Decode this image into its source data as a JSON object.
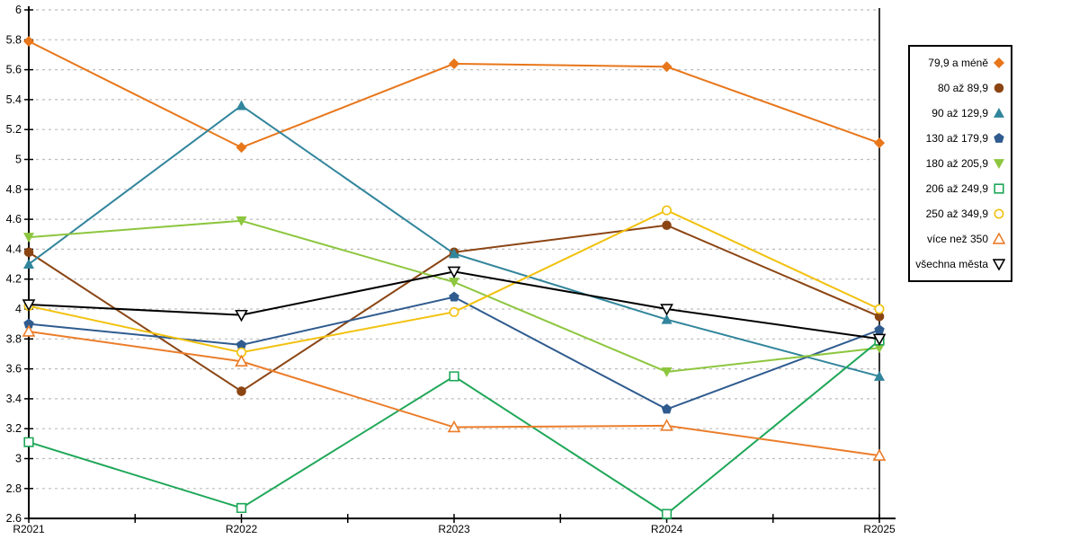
{
  "chart_data": {
    "type": "line",
    "title": "",
    "xlabel": "",
    "ylabel": "",
    "x_categories": [
      "R2021",
      "R2022",
      "R2023",
      "R2024",
      "R2025"
    ],
    "ylim": [
      2.6,
      6.0
    ],
    "y_tick_step": 0.2,
    "y_tick_labels": [
      "6",
      "5.8",
      "5.6",
      "5.4",
      "5.2",
      "5",
      "4.8",
      "4.6",
      "4.4",
      "4.2",
      "4",
      "3.8",
      "3.6",
      "3.4",
      "3.2",
      "3",
      "2.8",
      "2.6"
    ],
    "grid": "horizontal-dashed",
    "gridline_color": "#bdbdbd",
    "axis_color": "#000000",
    "background_color": "#ffffff",
    "legend_position": "right",
    "series": [
      {
        "name": "79,9 a méně",
        "color": "#e8761a",
        "marker": "diamond",
        "fill": "solid",
        "values": [
          5.79,
          5.08,
          5.64,
          5.62,
          5.11
        ]
      },
      {
        "name": "80 až 89,9",
        "color": "#8b4513",
        "marker": "circle",
        "fill": "solid",
        "values": [
          4.38,
          3.45,
          4.38,
          4.56,
          3.95
        ]
      },
      {
        "name": "90 až 129,9",
        "color": "#31859c",
        "marker": "triangle-up",
        "fill": "solid",
        "values": [
          4.3,
          5.36,
          4.37,
          3.93,
          3.55
        ]
      },
      {
        "name": "130 až 179,9",
        "color": "#2f5b8f",
        "marker": "pentagon",
        "fill": "solid",
        "values": [
          3.9,
          3.76,
          4.08,
          3.33,
          3.86
        ]
      },
      {
        "name": "180 až 205,9",
        "color": "#8dc63f",
        "marker": "triangle-down",
        "fill": "solid",
        "values": [
          4.48,
          4.59,
          4.18,
          3.58,
          3.74
        ]
      },
      {
        "name": "206 až 249,9",
        "color": "#1fa758",
        "marker": "square",
        "fill": "hollow",
        "values": [
          3.11,
          2.67,
          3.55,
          2.63,
          3.79
        ]
      },
      {
        "name": "250 až 349,9",
        "color": "#f2c10e",
        "marker": "circle",
        "fill": "hollow",
        "values": [
          4.02,
          3.71,
          3.98,
          4.66,
          4.0
        ]
      },
      {
        "name": "více než 350",
        "color": "#eb7d2a",
        "marker": "triangle-up",
        "fill": "hollow",
        "values": [
          3.85,
          3.65,
          3.21,
          3.22,
          3.02
        ]
      },
      {
        "name": "všechna města",
        "color": "#000000",
        "marker": "triangle-down",
        "fill": "hollow",
        "values": [
          4.03,
          3.96,
          4.25,
          4.0,
          3.8
        ]
      }
    ]
  }
}
